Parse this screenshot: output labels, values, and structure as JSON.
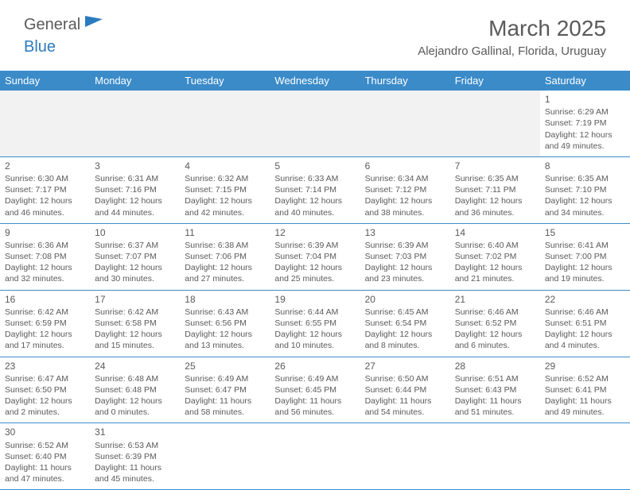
{
  "logo": {
    "text1": "General",
    "text2": "Blue"
  },
  "title": "March 2025",
  "location": "Alejandro Gallinal, Florida, Uruguay",
  "colors": {
    "header_bg": "#3b8bc9",
    "header_text": "#ffffff",
    "body_text": "#5a5a5a",
    "empty_bg": "#f2f2f2",
    "border": "#3b8bc9",
    "logo_blue": "#2b7bbf"
  },
  "columns": [
    "Sunday",
    "Monday",
    "Tuesday",
    "Wednesday",
    "Thursday",
    "Friday",
    "Saturday"
  ],
  "weeks": [
    [
      null,
      null,
      null,
      null,
      null,
      null,
      {
        "n": "1",
        "sr": "6:29 AM",
        "ss": "7:19 PM",
        "dl": "12 hours and 49 minutes."
      }
    ],
    [
      {
        "n": "2",
        "sr": "6:30 AM",
        "ss": "7:17 PM",
        "dl": "12 hours and 46 minutes."
      },
      {
        "n": "3",
        "sr": "6:31 AM",
        "ss": "7:16 PM",
        "dl": "12 hours and 44 minutes."
      },
      {
        "n": "4",
        "sr": "6:32 AM",
        "ss": "7:15 PM",
        "dl": "12 hours and 42 minutes."
      },
      {
        "n": "5",
        "sr": "6:33 AM",
        "ss": "7:14 PM",
        "dl": "12 hours and 40 minutes."
      },
      {
        "n": "6",
        "sr": "6:34 AM",
        "ss": "7:12 PM",
        "dl": "12 hours and 38 minutes."
      },
      {
        "n": "7",
        "sr": "6:35 AM",
        "ss": "7:11 PM",
        "dl": "12 hours and 36 minutes."
      },
      {
        "n": "8",
        "sr": "6:35 AM",
        "ss": "7:10 PM",
        "dl": "12 hours and 34 minutes."
      }
    ],
    [
      {
        "n": "9",
        "sr": "6:36 AM",
        "ss": "7:08 PM",
        "dl": "12 hours and 32 minutes."
      },
      {
        "n": "10",
        "sr": "6:37 AM",
        "ss": "7:07 PM",
        "dl": "12 hours and 30 minutes."
      },
      {
        "n": "11",
        "sr": "6:38 AM",
        "ss": "7:06 PM",
        "dl": "12 hours and 27 minutes."
      },
      {
        "n": "12",
        "sr": "6:39 AM",
        "ss": "7:04 PM",
        "dl": "12 hours and 25 minutes."
      },
      {
        "n": "13",
        "sr": "6:39 AM",
        "ss": "7:03 PM",
        "dl": "12 hours and 23 minutes."
      },
      {
        "n": "14",
        "sr": "6:40 AM",
        "ss": "7:02 PM",
        "dl": "12 hours and 21 minutes."
      },
      {
        "n": "15",
        "sr": "6:41 AM",
        "ss": "7:00 PM",
        "dl": "12 hours and 19 minutes."
      }
    ],
    [
      {
        "n": "16",
        "sr": "6:42 AM",
        "ss": "6:59 PM",
        "dl": "12 hours and 17 minutes."
      },
      {
        "n": "17",
        "sr": "6:42 AM",
        "ss": "6:58 PM",
        "dl": "12 hours and 15 minutes."
      },
      {
        "n": "18",
        "sr": "6:43 AM",
        "ss": "6:56 PM",
        "dl": "12 hours and 13 minutes."
      },
      {
        "n": "19",
        "sr": "6:44 AM",
        "ss": "6:55 PM",
        "dl": "12 hours and 10 minutes."
      },
      {
        "n": "20",
        "sr": "6:45 AM",
        "ss": "6:54 PM",
        "dl": "12 hours and 8 minutes."
      },
      {
        "n": "21",
        "sr": "6:46 AM",
        "ss": "6:52 PM",
        "dl": "12 hours and 6 minutes."
      },
      {
        "n": "22",
        "sr": "6:46 AM",
        "ss": "6:51 PM",
        "dl": "12 hours and 4 minutes."
      }
    ],
    [
      {
        "n": "23",
        "sr": "6:47 AM",
        "ss": "6:50 PM",
        "dl": "12 hours and 2 minutes."
      },
      {
        "n": "24",
        "sr": "6:48 AM",
        "ss": "6:48 PM",
        "dl": "12 hours and 0 minutes."
      },
      {
        "n": "25",
        "sr": "6:49 AM",
        "ss": "6:47 PM",
        "dl": "11 hours and 58 minutes."
      },
      {
        "n": "26",
        "sr": "6:49 AM",
        "ss": "6:45 PM",
        "dl": "11 hours and 56 minutes."
      },
      {
        "n": "27",
        "sr": "6:50 AM",
        "ss": "6:44 PM",
        "dl": "11 hours and 54 minutes."
      },
      {
        "n": "28",
        "sr": "6:51 AM",
        "ss": "6:43 PM",
        "dl": "11 hours and 51 minutes."
      },
      {
        "n": "29",
        "sr": "6:52 AM",
        "ss": "6:41 PM",
        "dl": "11 hours and 49 minutes."
      }
    ],
    [
      {
        "n": "30",
        "sr": "6:52 AM",
        "ss": "6:40 PM",
        "dl": "11 hours and 47 minutes."
      },
      {
        "n": "31",
        "sr": "6:53 AM",
        "ss": "6:39 PM",
        "dl": "11 hours and 45 minutes."
      },
      null,
      null,
      null,
      null,
      null
    ]
  ],
  "labels": {
    "sunrise": "Sunrise: ",
    "sunset": "Sunset: ",
    "daylight": "Daylight: "
  }
}
